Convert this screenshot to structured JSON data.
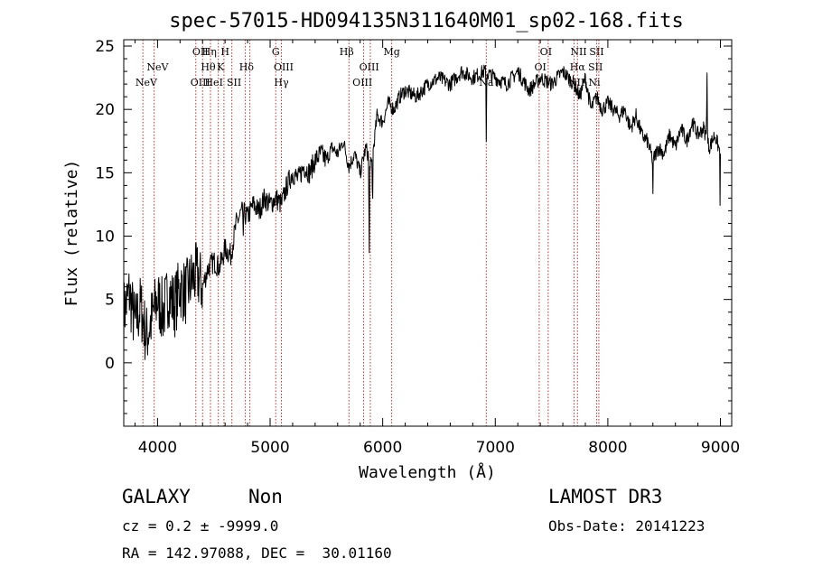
{
  "colors": {
    "background": "#ffffff",
    "foreground": "#000000",
    "line_marker": "#cc2b2b"
  },
  "chart_data": {
    "type": "line",
    "title": "spec-57015-HD094135N311640M01_sp02-168.fits",
    "xlabel": "Wavelength (Å)",
    "ylabel": "Flux (relative)",
    "xlim": [
      3700,
      9100
    ],
    "ylim": [
      -5,
      25.5
    ],
    "xticks": [
      4000,
      5000,
      6000,
      7000,
      8000,
      9000
    ],
    "yticks": [
      0,
      5,
      10,
      15,
      20,
      25
    ],
    "grid": false,
    "legend": "none",
    "series": [
      {
        "name": "flux",
        "x": [
          3700,
          3750,
          3800,
          3850,
          3900,
          3950,
          4000,
          4050,
          4100,
          4150,
          4200,
          4250,
          4300,
          4350,
          4400,
          4450,
          4500,
          4550,
          4600,
          4650,
          4700,
          4750,
          4800,
          4850,
          4900,
          4950,
          5000,
          5050,
          5100,
          5150,
          5200,
          5250,
          5300,
          5350,
          5400,
          5450,
          5500,
          5550,
          5600,
          5650,
          5700,
          5750,
          5800,
          5850,
          5900,
          5950,
          6000,
          6050,
          6100,
          6150,
          6200,
          6300,
          6400,
          6500,
          6600,
          6700,
          6800,
          6900,
          7000,
          7100,
          7200,
          7300,
          7400,
          7500,
          7600,
          7700,
          7750,
          7800,
          7850,
          7900,
          7950,
          8000,
          8050,
          8100,
          8150,
          8200,
          8250,
          8300,
          8350,
          8400,
          8450,
          8500,
          8550,
          8600,
          8650,
          8700,
          8750,
          8800,
          8850,
          8900,
          8950,
          9000
        ],
        "values": [
          4.0,
          5.5,
          3.0,
          4.5,
          2.0,
          3.5,
          5.0,
          4.0,
          5.5,
          4.5,
          6.0,
          5.5,
          6.5,
          7.0,
          6.0,
          7.5,
          8.0,
          7.5,
          9.0,
          8.5,
          11.0,
          12.0,
          11.5,
          12.5,
          12.0,
          13.0,
          12.5,
          13.0,
          12.5,
          14.0,
          15.0,
          14.5,
          15.5,
          15.0,
          16.0,
          16.5,
          16.0,
          17.0,
          16.5,
          17.5,
          15.5,
          16.5,
          15.0,
          17.0,
          15.5,
          19.5,
          19.0,
          20.5,
          20.0,
          21.0,
          21.5,
          21.0,
          22.0,
          22.5,
          22.0,
          23.0,
          22.5,
          23.0,
          22.5,
          22.0,
          23.0,
          21.5,
          22.5,
          22.0,
          23.0,
          22.0,
          21.0,
          22.5,
          20.0,
          21.0,
          20.0,
          20.5,
          20.0,
          19.5,
          20.0,
          18.5,
          19.5,
          18.0,
          17.5,
          16.0,
          17.0,
          16.5,
          18.0,
          17.0,
          18.5,
          17.5,
          19.0,
          18.0,
          18.5,
          17.0,
          18.0,
          16.5
        ]
      }
    ],
    "features": [
      {
        "wavelength": 4760,
        "depth": 2.5
      },
      {
        "wavelength": 5880,
        "depth": 9.0
      },
      {
        "wavelength": 5910,
        "depth": 4.5
      },
      {
        "wavelength": 6920,
        "depth": 5.0
      },
      {
        "wavelength": 8400,
        "depth": 2.5
      },
      {
        "wavelength": 8880,
        "depth": -6.5
      },
      {
        "wavelength": 9000,
        "depth": 16.0
      }
    ],
    "line_markers": [
      3870,
      3970,
      4340,
      4400,
      4470,
      4540,
      4590,
      4660,
      4780,
      4820,
      5050,
      5100,
      5700,
      5830,
      5890,
      6080,
      6920,
      7390,
      7470,
      7700,
      7730,
      7900,
      7920
    ],
    "line_labels": [
      {
        "text": "NeV",
        "wavelength": 3900,
        "row": 3
      },
      {
        "text": "NeV",
        "wavelength": 4000,
        "row": 2
      },
      {
        "text": "OII",
        "wavelength": 4380,
        "row": 1
      },
      {
        "text": "Hη",
        "wavelength": 4460,
        "row": 1
      },
      {
        "text": "H",
        "wavelength": 4600,
        "row": 1
      },
      {
        "text": "Hθ",
        "wavelength": 4450,
        "row": 2
      },
      {
        "text": "K",
        "wavelength": 4560,
        "row": 2
      },
      {
        "text": "Hδ",
        "wavelength": 4790,
        "row": 2
      },
      {
        "text": "OIII",
        "wavelength": 4380,
        "row": 3
      },
      {
        "text": "HeI",
        "wavelength": 4500,
        "row": 3
      },
      {
        "text": "SII",
        "wavelength": 4680,
        "row": 3
      },
      {
        "text": "G",
        "wavelength": 5050,
        "row": 1
      },
      {
        "text": "OIII",
        "wavelength": 5120,
        "row": 2
      },
      {
        "text": "Hγ",
        "wavelength": 5100,
        "row": 3
      },
      {
        "text": "Hβ",
        "wavelength": 5680,
        "row": 1
      },
      {
        "text": "Mg",
        "wavelength": 6080,
        "row": 1
      },
      {
        "text": "OIII",
        "wavelength": 5880,
        "row": 2
      },
      {
        "text": "OIII",
        "wavelength": 5820,
        "row": 3
      },
      {
        "text": "Na",
        "wavelength": 6920,
        "row": 3
      },
      {
        "text": "OI",
        "wavelength": 7450,
        "row": 1
      },
      {
        "text": "NII",
        "wavelength": 7740,
        "row": 1
      },
      {
        "text": "SII",
        "wavelength": 7900,
        "row": 1
      },
      {
        "text": "OI",
        "wavelength": 7400,
        "row": 2
      },
      {
        "text": "Hα",
        "wavelength": 7730,
        "row": 2
      },
      {
        "text": "SII",
        "wavelength": 7890,
        "row": 2
      },
      {
        "text": "NII",
        "wavelength": 7720,
        "row": 3
      },
      {
        "text": "Ni",
        "wavelength": 7880,
        "row": 3
      }
    ]
  },
  "info": {
    "object_class": "GALAXY",
    "subclass": "Non",
    "cz_line": "cz = 0.2 ± -9999.0",
    "coords_line": "RA = 142.97088, DEC =  30.01160",
    "survey": "LAMOST DR3",
    "obs_date_line": "Obs-Date: 20141223"
  }
}
